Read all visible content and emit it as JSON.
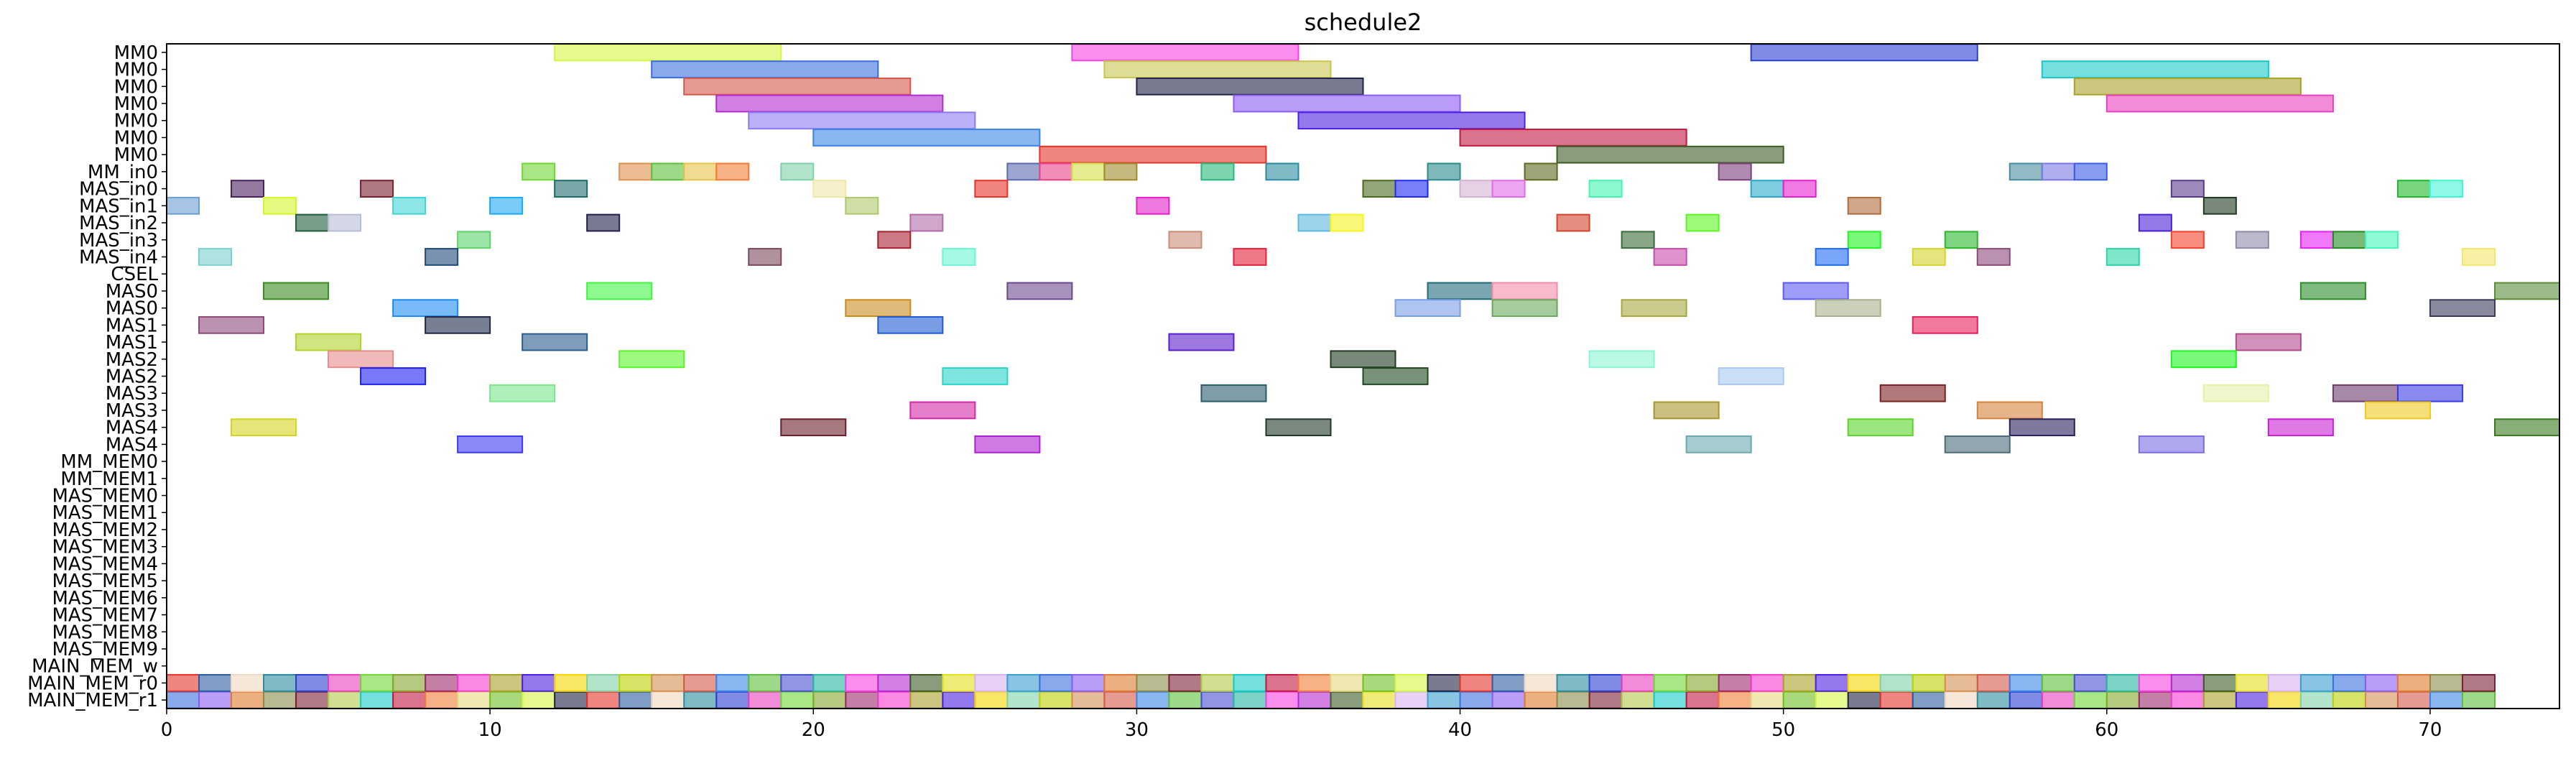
{
  "chart_data": {
    "type": "gantt",
    "title": "schedule2",
    "xlabel": "",
    "ylabel": "",
    "xlim": [
      0,
      74
    ],
    "x_ticks": [
      0,
      10,
      20,
      30,
      40,
      50,
      60,
      70
    ],
    "grid": false,
    "legend": "none",
    "rows": [
      "MM0",
      "MM0",
      "MM0",
      "MM0",
      "MM0",
      "MM0",
      "MM0",
      "MM_in0",
      "MAS_in0",
      "MAS_in1",
      "MAS_in2",
      "MAS_in3",
      "MAS_in4",
      "CSEL",
      "MAS0",
      "MAS0",
      "MAS1",
      "MAS1",
      "MAS2",
      "MAS2",
      "MAS3",
      "MAS3",
      "MAS4",
      "MAS4",
      "MM_MEM0",
      "MM_MEM1",
      "MAS_MEM0",
      "MAS_MEM1",
      "MAS_MEM2",
      "MAS_MEM3",
      "MAS_MEM4",
      "MAS_MEM5",
      "MAS_MEM6",
      "MAS_MEM7",
      "MAS_MEM8",
      "MAS_MEM9",
      "MAIN_MEM_w",
      "MAIN_MEM_r0",
      "MAIN_MEM_r1"
    ],
    "palette": [
      "#d4f542",
      "#f542e0",
      "#2b3fd1",
      "#3b6fe0",
      "#a8a22a",
      "#17c9c9",
      "#d4584a",
      "#1f2345",
      "#b32ad1",
      "#ea3fc0",
      "#8c5cf5",
      "#4e1fe0",
      "#c2183f",
      "#3a85e6",
      "#e6342a",
      "#3b5c26",
      "#6fd636",
      "#e07a2e",
      "#f5d600",
      "#f27d36",
      "#5bbf3a",
      "#2a5c9e",
      "#e3e01d",
      "#84a72b",
      "#8a8c4a",
      "#7fd1a8",
      "#e6d880",
      "#4a4fd1",
      "#f0d8c0",
      "#d9b2f0",
      "#9b2a6b",
      "#7a2036",
      "#bcd100",
      "#6fbf23",
      "#27b8a0",
      "#2a8c9e",
      "#3a9ed1",
      "#f73ad1",
      "#b0c948",
      "#d48f52"
    ],
    "tasks": [
      {
        "row": 0,
        "start": 12,
        "end": 19,
        "color": "#d4f542"
      },
      {
        "row": 0,
        "start": 28,
        "end": 35,
        "color": "#f542e0"
      },
      {
        "row": 0,
        "start": 49,
        "end": 56,
        "color": "#2b3fd1"
      },
      {
        "row": 1,
        "start": 15,
        "end": 22,
        "color": "#3b6fe0"
      },
      {
        "row": 1,
        "start": 29,
        "end": 36,
        "color": "#c9c54e"
      },
      {
        "row": 1,
        "start": 58,
        "end": 65,
        "color": "#17c9c9"
      },
      {
        "row": 2,
        "start": 16,
        "end": 23,
        "color": "#d4584a"
      },
      {
        "row": 2,
        "start": 30,
        "end": 37,
        "color": "#1f2345"
      },
      {
        "row": 2,
        "start": 59,
        "end": 66,
        "color": "#a8a22a"
      },
      {
        "row": 3,
        "start": 17,
        "end": 24,
        "color": "#b32ad1"
      },
      {
        "row": 3,
        "start": 33,
        "end": 40,
        "color": "#8c5cf5"
      },
      {
        "row": 3,
        "start": 60,
        "end": 67,
        "color": "#ea3fc0"
      },
      {
        "row": 4,
        "start": 18,
        "end": 25,
        "color": "#8c7af5"
      },
      {
        "row": 4,
        "start": 35,
        "end": 42,
        "color": "#4e1fe0"
      },
      {
        "row": 5,
        "start": 20,
        "end": 27,
        "color": "#3a85e6"
      },
      {
        "row": 5,
        "start": 40,
        "end": 47,
        "color": "#c2183f"
      },
      {
        "row": 6,
        "start": 27,
        "end": 34,
        "color": "#e6342a"
      },
      {
        "row": 6,
        "start": 43,
        "end": 50,
        "color": "#3b5c26"
      },
      {
        "row": 7,
        "start": 11,
        "end": 12,
        "color": "#6fd636"
      },
      {
        "row": 7,
        "start": 14,
        "end": 15,
        "color": "#e0904e"
      },
      {
        "row": 7,
        "start": 15,
        "end": 16,
        "color": "#5bbf3a"
      },
      {
        "row": 7,
        "start": 16,
        "end": 17,
        "color": "#e6c34a"
      },
      {
        "row": 7,
        "start": 17,
        "end": 18,
        "color": "#f27d36"
      },
      {
        "row": 7,
        "start": 19,
        "end": 20,
        "color": "#7fd1a8"
      },
      {
        "row": 7,
        "start": 26,
        "end": 27,
        "color": "#5a6bb0"
      },
      {
        "row": 7,
        "start": 27,
        "end": 28,
        "color": "#ea3f8a"
      },
      {
        "row": 7,
        "start": 28,
        "end": 29,
        "color": "#d4e04a"
      },
      {
        "row": 7,
        "start": 29,
        "end": 30,
        "color": "#9e8a2a"
      },
      {
        "row": 7,
        "start": 32,
        "end": 33,
        "color": "#27b87a"
      },
      {
        "row": 7,
        "start": 34,
        "end": 35,
        "color": "#2a8c9e"
      },
      {
        "row": 7,
        "start": 39,
        "end": 40,
        "color": "#2a8c8c"
      },
      {
        "row": 7,
        "start": 42,
        "end": 43,
        "color": "#5c6b1f"
      },
      {
        "row": 7,
        "start": 48,
        "end": 49,
        "color": "#7a3f7a"
      },
      {
        "row": 7,
        "start": 57,
        "end": 58,
        "color": "#4a8c9e"
      },
      {
        "row": 7,
        "start": 58,
        "end": 59,
        "color": "#7a7ae6"
      },
      {
        "row": 7,
        "start": 59,
        "end": 60,
        "color": "#3a5ce6"
      },
      {
        "row": 8,
        "start": 2,
        "end": 3,
        "color": "#4a1f5c"
      },
      {
        "row": 8,
        "start": 6,
        "end": 7,
        "color": "#7a1f2e"
      },
      {
        "row": 8,
        "start": 12,
        "end": 13,
        "color": "#1f6b6b"
      },
      {
        "row": 8,
        "start": 20,
        "end": 21,
        "color": "#f0e8a8"
      },
      {
        "row": 8,
        "start": 25,
        "end": 26,
        "color": "#e6342a"
      },
      {
        "row": 8,
        "start": 37,
        "end": 38,
        "color": "#4a6b1f"
      },
      {
        "row": 8,
        "start": 38,
        "end": 39,
        "color": "#1f2af5"
      },
      {
        "row": 8,
        "start": 40,
        "end": 41,
        "color": "#d4b2d4"
      },
      {
        "row": 8,
        "start": 41,
        "end": 42,
        "color": "#e06be6"
      },
      {
        "row": 8,
        "start": 44,
        "end": 45,
        "color": "#42f5b0"
      },
      {
        "row": 8,
        "start": 49,
        "end": 50,
        "color": "#2aa8c9"
      },
      {
        "row": 8,
        "start": 50,
        "end": 51,
        "color": "#e61fd1"
      },
      {
        "row": 8,
        "start": 62,
        "end": 63,
        "color": "#5c3a8c"
      },
      {
        "row": 8,
        "start": 69,
        "end": 70,
        "color": "#1fb82a"
      },
      {
        "row": 8,
        "start": 70,
        "end": 71,
        "color": "#42f5d4"
      },
      {
        "row": 9,
        "start": 0,
        "end": 1,
        "color": "#6b9ed4"
      },
      {
        "row": 9,
        "start": 3,
        "end": 4,
        "color": "#d4f52a"
      },
      {
        "row": 9,
        "start": 7,
        "end": 8,
        "color": "#42d4d4"
      },
      {
        "row": 9,
        "start": 10,
        "end": 11,
        "color": "#1fa8f5"
      },
      {
        "row": 9,
        "start": 21,
        "end": 22,
        "color": "#b0c96b"
      },
      {
        "row": 9,
        "start": 30,
        "end": 31,
        "color": "#e61fc9"
      },
      {
        "row": 9,
        "start": 52,
        "end": 53,
        "color": "#b06b3a"
      },
      {
        "row": 9,
        "start": 63,
        "end": 64,
        "color": "#1f3a1f"
      },
      {
        "row": 10,
        "start": 4,
        "end": 5,
        "color": "#1f5c3a"
      },
      {
        "row": 10,
        "start": 5,
        "end": 6,
        "color": "#b8bcd4"
      },
      {
        "row": 10,
        "start": 13,
        "end": 14,
        "color": "#1f1f4a"
      },
      {
        "row": 10,
        "start": 23,
        "end": 24,
        "color": "#b06ba8"
      },
      {
        "row": 10,
        "start": 35,
        "end": 36,
        "color": "#5cb8e0"
      },
      {
        "row": 10,
        "start": 36,
        "end": 37,
        "color": "#f5f51f"
      },
      {
        "row": 10,
        "start": 43,
        "end": 44,
        "color": "#d4422a"
      },
      {
        "row": 10,
        "start": 47,
        "end": 48,
        "color": "#5cf51f"
      },
      {
        "row": 10,
        "start": 61,
        "end": 62,
        "color": "#4a1fd4"
      },
      {
        "row": 11,
        "start": 9,
        "end": 10,
        "color": "#5cd46b"
      },
      {
        "row": 11,
        "start": 22,
        "end": 23,
        "color": "#a81f2e"
      },
      {
        "row": 11,
        "start": 31,
        "end": 32,
        "color": "#c98c7a"
      },
      {
        "row": 11,
        "start": 45,
        "end": 46,
        "color": "#3a6b3a"
      },
      {
        "row": 11,
        "start": 52,
        "end": 53,
        "color": "#1ff51f"
      },
      {
        "row": 11,
        "start": 55,
        "end": 56,
        "color": "#2ab82a"
      },
      {
        "row": 11,
        "start": 62,
        "end": 63,
        "color": "#f5422a"
      },
      {
        "row": 11,
        "start": 64,
        "end": 65,
        "color": "#8c8ca8"
      },
      {
        "row": 11,
        "start": 66,
        "end": 67,
        "color": "#e61ff5"
      },
      {
        "row": 11,
        "start": 67,
        "end": 68,
        "color": "#1f8c1f"
      },
      {
        "row": 11,
        "start": 68,
        "end": 69,
        "color": "#42f5b8"
      },
      {
        "row": 12,
        "start": 1,
        "end": 2,
        "color": "#7ad1d1"
      },
      {
        "row": 12,
        "start": 8,
        "end": 9,
        "color": "#1f4a7a"
      },
      {
        "row": 12,
        "start": 18,
        "end": 19,
        "color": "#7a4a5c"
      },
      {
        "row": 12,
        "start": 24,
        "end": 25,
        "color": "#6bf5d4"
      },
      {
        "row": 12,
        "start": 33,
        "end": 34,
        "color": "#e61f3a"
      },
      {
        "row": 12,
        "start": 46,
        "end": 47,
        "color": "#c94aa8"
      },
      {
        "row": 12,
        "start": 51,
        "end": 52,
        "color": "#1f6bf5"
      },
      {
        "row": 12,
        "start": 54,
        "end": 55,
        "color": "#d4d42a"
      },
      {
        "row": 12,
        "start": 56,
        "end": 57,
        "color": "#8c4a7a"
      },
      {
        "row": 12,
        "start": 60,
        "end": 61,
        "color": "#2ad4a8"
      },
      {
        "row": 12,
        "start": 71,
        "end": 72,
        "color": "#f5e66b"
      },
      {
        "row": 14,
        "start": 3,
        "end": 5,
        "color": "#3a8c1f"
      },
      {
        "row": 14,
        "start": 13,
        "end": 15,
        "color": "#42f542"
      },
      {
        "row": 14,
        "start": 26,
        "end": 28,
        "color": "#6b4a8c"
      },
      {
        "row": 14,
        "start": 39,
        "end": 41,
        "color": "#1f6b7a"
      },
      {
        "row": 14,
        "start": 41,
        "end": 43,
        "color": "#f58ca8"
      },
      {
        "row": 14,
        "start": 50,
        "end": 52,
        "color": "#5c5cf5"
      },
      {
        "row": 14,
        "start": 66,
        "end": 68,
        "color": "#2a8c2a"
      },
      {
        "row": 14,
        "start": 72,
        "end": 74,
        "color": "#5c8c3a"
      },
      {
        "row": 15,
        "start": 7,
        "end": 9,
        "color": "#1f8cf5"
      },
      {
        "row": 15,
        "start": 21,
        "end": 23,
        "color": "#c98c1f"
      },
      {
        "row": 15,
        "start": 38,
        "end": 40,
        "color": "#7a9ee6"
      },
      {
        "row": 15,
        "start": 41,
        "end": 43,
        "color": "#6ba85c"
      },
      {
        "row": 15,
        "start": 45,
        "end": 47,
        "color": "#a8a842"
      },
      {
        "row": 15,
        "start": 51,
        "end": 53,
        "color": "#a8b08c"
      },
      {
        "row": 15,
        "start": 70,
        "end": 72,
        "color": "#3a3a5c"
      },
      {
        "row": 16,
        "start": 1,
        "end": 3,
        "color": "#8c4a7a"
      },
      {
        "row": 16,
        "start": 8,
        "end": 10,
        "color": "#1f2a4a"
      },
      {
        "row": 16,
        "start": 22,
        "end": 24,
        "color": "#1f5cd4"
      },
      {
        "row": 16,
        "start": 54,
        "end": 56,
        "color": "#e61f5c"
      },
      {
        "row": 17,
        "start": 4,
        "end": 6,
        "color": "#b0d42a"
      },
      {
        "row": 17,
        "start": 11,
        "end": 13,
        "color": "#2a5c8c"
      },
      {
        "row": 17,
        "start": 31,
        "end": 33,
        "color": "#5c1fc9"
      },
      {
        "row": 17,
        "start": 64,
        "end": 66,
        "color": "#b04a8c"
      },
      {
        "row": 18,
        "start": 5,
        "end": 7,
        "color": "#e68c8c"
      },
      {
        "row": 18,
        "start": 14,
        "end": 16,
        "color": "#5cf52a"
      },
      {
        "row": 18,
        "start": 36,
        "end": 38,
        "color": "#1f3a1f"
      },
      {
        "row": 18,
        "start": 44,
        "end": 46,
        "color": "#8cf5d4"
      },
      {
        "row": 18,
        "start": 62,
        "end": 64,
        "color": "#1ff51f"
      },
      {
        "row": 19,
        "start": 6,
        "end": 8,
        "color": "#1f1ff5"
      },
      {
        "row": 19,
        "start": 24,
        "end": 26,
        "color": "#2ad4c9"
      },
      {
        "row": 19,
        "start": 37,
        "end": 39,
        "color": "#1f4a1f"
      },
      {
        "row": 19,
        "start": 48,
        "end": 50,
        "color": "#a8c9f0"
      },
      {
        "row": 20,
        "start": 10,
        "end": 12,
        "color": "#7ae68c"
      },
      {
        "row": 20,
        "start": 32,
        "end": 34,
        "color": "#2a5c6b"
      },
      {
        "row": 20,
        "start": 53,
        "end": 55,
        "color": "#7a1f1f"
      },
      {
        "row": 20,
        "start": 63,
        "end": 65,
        "color": "#e6f0a8"
      },
      {
        "row": 20,
        "start": 67,
        "end": 69,
        "color": "#6b3a6b"
      },
      {
        "row": 20,
        "start": 69,
        "end": 71,
        "color": "#3a3ae6"
      },
      {
        "row": 21,
        "start": 23,
        "end": 25,
        "color": "#d42aa8"
      },
      {
        "row": 21,
        "start": 46,
        "end": 48,
        "color": "#a8962a"
      },
      {
        "row": 21,
        "start": 56,
        "end": 58,
        "color": "#d4843a"
      },
      {
        "row": 21,
        "start": 68,
        "end": 70,
        "color": "#f0c91f"
      },
      {
        "row": 22,
        "start": 2,
        "end": 4,
        "color": "#d4d41f"
      },
      {
        "row": 22,
        "start": 19,
        "end": 21,
        "color": "#6b1f2a"
      },
      {
        "row": 22,
        "start": 34,
        "end": 36,
        "color": "#1f3a2a"
      },
      {
        "row": 22,
        "start": 52,
        "end": 54,
        "color": "#5cd42a"
      },
      {
        "row": 22,
        "start": 57,
        "end": 59,
        "color": "#2a1f5c"
      },
      {
        "row": 22,
        "start": 65,
        "end": 67,
        "color": "#c91fd4"
      },
      {
        "row": 22,
        "start": 72,
        "end": 74,
        "color": "#3a7a1f"
      },
      {
        "row": 23,
        "start": 9,
        "end": 11,
        "color": "#3a3af5"
      },
      {
        "row": 23,
        "start": 25,
        "end": 27,
        "color": "#b01fd4"
      },
      {
        "row": 23,
        "start": 47,
        "end": 49,
        "color": "#6ba8b0"
      },
      {
        "row": 23,
        "start": 55,
        "end": 57,
        "color": "#4a6b7a"
      },
      {
        "row": 23,
        "start": 61,
        "end": 63,
        "color": "#7a6be6"
      }
    ]
  }
}
